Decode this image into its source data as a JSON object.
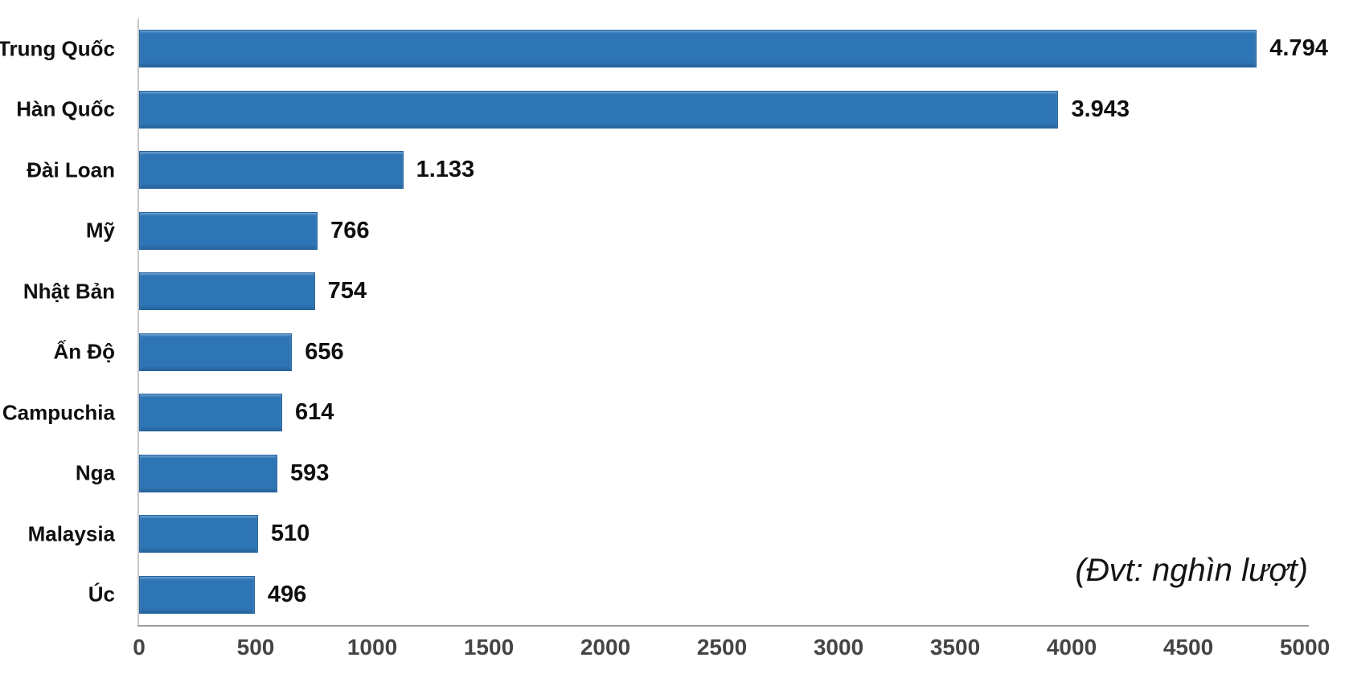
{
  "chart_data": {
    "type": "bar",
    "orientation": "horizontal",
    "title": "",
    "unit_note": "(Đvt: nghìn lượt)",
    "categories": [
      "Trung Quốc",
      "Hàn Quốc",
      "Đài Loan",
      "Mỹ",
      "Nhật Bản",
      "Ấn Độ",
      "Campuchia",
      "Nga",
      "Malaysia",
      "Úc"
    ],
    "values": [
      4794,
      3943,
      1133,
      766,
      754,
      656,
      614,
      593,
      510,
      496
    ],
    "value_labels": [
      "4.794",
      "3.943",
      "1.133",
      "766",
      "754",
      "656",
      "614",
      "593",
      "510",
      "496"
    ],
    "x_ticks": [
      0,
      500,
      1000,
      1500,
      2000,
      2500,
      3000,
      3500,
      4000,
      4500,
      5000
    ],
    "xlim": [
      0,
      5000
    ],
    "grid": false,
    "legend_position": "none",
    "colors": {
      "bar_fill": "#2E75B6",
      "bar_border": "#24639F",
      "x_axis_line": "#9B9B9B",
      "y_axis_line": "#C9C9C9",
      "tick_label": "#454545",
      "category_label": "#101010",
      "value_label": "#0F0F0F"
    }
  }
}
